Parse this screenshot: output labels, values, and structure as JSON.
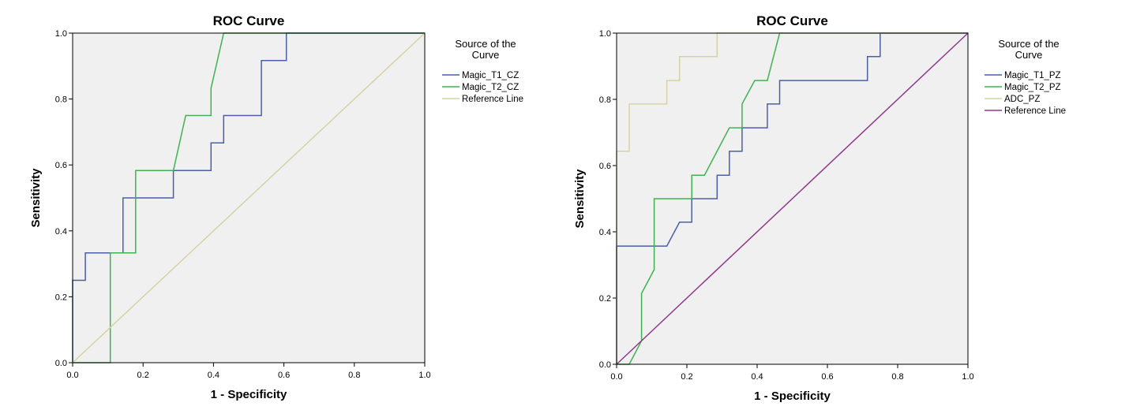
{
  "chart_data": [
    {
      "type": "line",
      "title": "ROC Curve",
      "xlabel": "1 - Specificity",
      "ylabel": "Sensitivity",
      "xlim": [
        0,
        1
      ],
      "ylim": [
        0,
        1
      ],
      "xticks": [
        "0.0",
        "0.2",
        "0.4",
        "0.6",
        "0.8",
        "1.0"
      ],
      "yticks": [
        "0.0",
        "0.2",
        "0.4",
        "0.6",
        "0.8",
        "1.0"
      ],
      "legend_title": "Source of the Curve",
      "legend_title_lines": [
        "Source of the",
        "Curve"
      ],
      "legend_position": "right",
      "series": [
        {
          "name": "Magic_T1_CZ",
          "color": "#4a5fa6",
          "points": [
            [
              0,
              0
            ],
            [
              0,
              0.25
            ],
            [
              0.036,
              0.25
            ],
            [
              0.036,
              0.333
            ],
            [
              0.143,
              0.333
            ],
            [
              0.143,
              0.5
            ],
            [
              0.286,
              0.5
            ],
            [
              0.286,
              0.583
            ],
            [
              0.393,
              0.583
            ],
            [
              0.393,
              0.667
            ],
            [
              0.429,
              0.667
            ],
            [
              0.429,
              0.75
            ],
            [
              0.536,
              0.75
            ],
            [
              0.536,
              0.917
            ],
            [
              0.607,
              0.917
            ],
            [
              0.607,
              1.0
            ],
            [
              1.0,
              1.0
            ]
          ]
        },
        {
          "name": "Magic_T2_CZ",
          "color": "#3fb34f",
          "points": [
            [
              0,
              0
            ],
            [
              0.107,
              0
            ],
            [
              0.107,
              0.333
            ],
            [
              0.179,
              0.333
            ],
            [
              0.179,
              0.583
            ],
            [
              0.286,
              0.583
            ],
            [
              0.321,
              0.75
            ],
            [
              0.393,
              0.75
            ],
            [
              0.393,
              0.833
            ],
            [
              0.429,
              1.0
            ],
            [
              1.0,
              1.0
            ]
          ]
        },
        {
          "name": "Reference Line",
          "color": "#d6d2a4",
          "points": [
            [
              0,
              0
            ],
            [
              1,
              1
            ]
          ]
        }
      ]
    },
    {
      "type": "line",
      "title": "ROC Curve",
      "xlabel": "1 - Specificity",
      "ylabel": "Sensitivity",
      "xlim": [
        0,
        1
      ],
      "ylim": [
        0,
        1
      ],
      "xticks": [
        "0.0",
        "0.2",
        "0.4",
        "0.6",
        "0.8",
        "1.0"
      ],
      "yticks": [
        "0.0",
        "0.2",
        "0.4",
        "0.6",
        "0.8",
        "1.0"
      ],
      "legend_title": "Source of the Curve",
      "legend_title_lines": [
        "Source of the",
        "Curve"
      ],
      "legend_position": "right",
      "series": [
        {
          "name": "Magic_T1_PZ",
          "color": "#4a5fa6",
          "points": [
            [
              0,
              0
            ],
            [
              0,
              0.357
            ],
            [
              0.143,
              0.357
            ],
            [
              0.179,
              0.429
            ],
            [
              0.214,
              0.429
            ],
            [
              0.214,
              0.5
            ],
            [
              0.286,
              0.5
            ],
            [
              0.286,
              0.571
            ],
            [
              0.321,
              0.571
            ],
            [
              0.321,
              0.643
            ],
            [
              0.357,
              0.643
            ],
            [
              0.357,
              0.714
            ],
            [
              0.429,
              0.714
            ],
            [
              0.429,
              0.786
            ],
            [
              0.464,
              0.786
            ],
            [
              0.464,
              0.857
            ],
            [
              0.714,
              0.857
            ],
            [
              0.714,
              0.929
            ],
            [
              0.75,
              0.929
            ],
            [
              0.75,
              1.0
            ],
            [
              1.0,
              1.0
            ]
          ]
        },
        {
          "name": "Magic_T2_PZ",
          "color": "#3fb34f",
          "points": [
            [
              0,
              0
            ],
            [
              0.036,
              0
            ],
            [
              0.071,
              0.071
            ],
            [
              0.071,
              0.214
            ],
            [
              0.107,
              0.286
            ],
            [
              0.107,
              0.5
            ],
            [
              0.214,
              0.5
            ],
            [
              0.214,
              0.571
            ],
            [
              0.25,
              0.571
            ],
            [
              0.321,
              0.714
            ],
            [
              0.357,
              0.714
            ],
            [
              0.357,
              0.786
            ],
            [
              0.393,
              0.857
            ],
            [
              0.429,
              0.857
            ],
            [
              0.464,
              1.0
            ],
            [
              1.0,
              1.0
            ]
          ]
        },
        {
          "name": "ADC_PZ",
          "color": "#d6d2a4",
          "points": [
            [
              0,
              0
            ],
            [
              0,
              0.643
            ],
            [
              0.036,
              0.643
            ],
            [
              0.036,
              0.786
            ],
            [
              0.143,
              0.786
            ],
            [
              0.143,
              0.857
            ],
            [
              0.179,
              0.857
            ],
            [
              0.179,
              0.929
            ],
            [
              0.286,
              0.929
            ],
            [
              0.286,
              1.0
            ],
            [
              1.0,
              1.0
            ]
          ]
        },
        {
          "name": "Reference Line",
          "color": "#8e3a8c",
          "points": [
            [
              0,
              0
            ],
            [
              1,
              1
            ]
          ]
        }
      ]
    }
  ]
}
